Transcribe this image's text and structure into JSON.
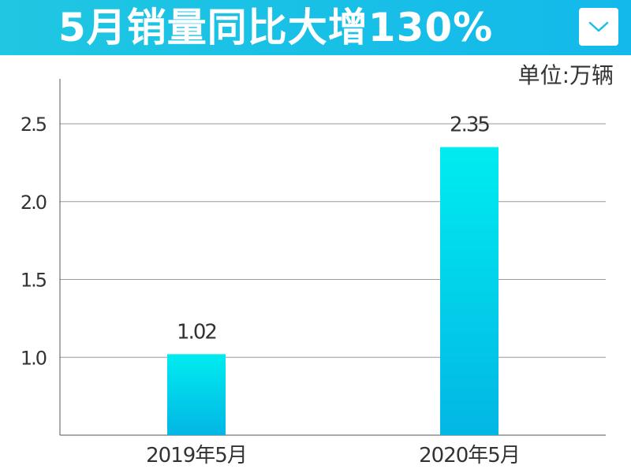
{
  "header": {
    "title": "5月销量同比大增130%",
    "dropdown_icon": "chevron-down-icon",
    "background_colors": [
      "#1fc7e2",
      "#13b9ea"
    ]
  },
  "chart_data": {
    "type": "bar",
    "title": "5月销量同比大增130%",
    "unit": "单位:万辆",
    "categories": [
      "2019年5月",
      "2020年5月"
    ],
    "values": [
      1.02,
      2.35
    ],
    "data_labels": [
      "1.02",
      "2.35"
    ],
    "yticks": [
      1.0,
      1.5,
      2.0,
      2.5
    ],
    "ytick_labels": [
      "1.0",
      "1.5",
      "2.0",
      "2.5"
    ],
    "ylim": [
      0.5,
      2.8
    ],
    "grid": true,
    "bar_gradient": [
      "#00ecf0",
      "#03b6e4"
    ]
  }
}
